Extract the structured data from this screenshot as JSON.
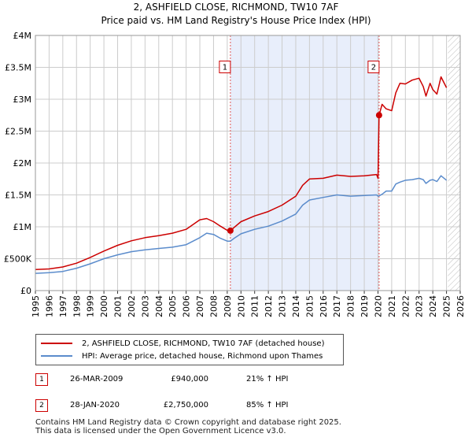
{
  "chart_data": {
    "type": "line",
    "title": "2, ASHFIELD CLOSE, RICHMOND, TW10 7AF",
    "subtitle": "Price paid vs. HM Land Registry's House Price Index (HPI)",
    "xlim": [
      1995,
      2026
    ],
    "ylim": [
      0,
      4000000
    ],
    "y_ticks": [
      {
        "value": 0,
        "label": "£0"
      },
      {
        "value": 500000,
        "label": "£500K"
      },
      {
        "value": 1000000,
        "label": "£1M"
      },
      {
        "value": 1500000,
        "label": "£1.5M"
      },
      {
        "value": 2000000,
        "label": "£2M"
      },
      {
        "value": 2500000,
        "label": "£2.5M"
      },
      {
        "value": 3000000,
        "label": "£3M"
      },
      {
        "value": 3500000,
        "label": "£3.5M"
      },
      {
        "value": 4000000,
        "label": "£4M"
      }
    ],
    "x_ticks": [
      "1995",
      "1996",
      "1997",
      "1998",
      "1999",
      "2000",
      "2001",
      "2002",
      "2003",
      "2004",
      "2005",
      "2006",
      "2007",
      "2008",
      "2009",
      "2010",
      "2011",
      "2012",
      "2013",
      "2014",
      "2015",
      "2016",
      "2017",
      "2018",
      "2019",
      "2020",
      "2021",
      "2022",
      "2023",
      "2024",
      "2025",
      "2026"
    ],
    "shaded_region": {
      "from": 2009.23,
      "to": 2020.08,
      "color": "#e8eefb"
    },
    "future_hatch_from": 2025.1,
    "series": [
      {
        "name": "2, ASHFIELD CLOSE, RICHMOND, TW10 7AF (detached house)",
        "color": "#cc0000",
        "x": [
          1995.0,
          1996.0,
          1997.0,
          1998.0,
          1999.0,
          2000.0,
          2001.0,
          2002.0,
          2003.0,
          2004.0,
          2005.0,
          2006.0,
          2007.0,
          2007.5,
          2008.0,
          2008.5,
          2009.0,
          2009.23,
          2009.5,
          2010.0,
          2011.0,
          2012.0,
          2013.0,
          2014.0,
          2014.5,
          2015.0,
          2016.0,
          2017.0,
          2018.0,
          2019.0,
          2019.9,
          2020.0,
          2020.08,
          2020.3,
          2020.6,
          2021.0,
          2021.3,
          2021.6,
          2022.0,
          2022.5,
          2023.0,
          2023.3,
          2023.5,
          2023.8,
          2024.0,
          2024.3,
          2024.6,
          2025.0
        ],
        "values": [
          330000,
          340000,
          370000,
          430000,
          520000,
          620000,
          710000,
          780000,
          830000,
          860000,
          900000,
          960000,
          1110000,
          1130000,
          1080000,
          1010000,
          945000,
          940000,
          990000,
          1080000,
          1170000,
          1240000,
          1340000,
          1480000,
          1650000,
          1750000,
          1760000,
          1810000,
          1790000,
          1800000,
          1820000,
          1760000,
          2750000,
          2920000,
          2850000,
          2820000,
          3100000,
          3250000,
          3240000,
          3300000,
          3330000,
          3200000,
          3050000,
          3250000,
          3150000,
          3080000,
          3350000,
          3180000
        ]
      },
      {
        "name": "HPI: Average price, detached house, Richmond upon Thames",
        "color": "#5b8ccc",
        "x": [
          1995.0,
          1996.0,
          1997.0,
          1998.0,
          1999.0,
          2000.0,
          2001.0,
          2002.0,
          2003.0,
          2004.0,
          2005.0,
          2006.0,
          2007.0,
          2007.5,
          2008.0,
          2008.5,
          2009.0,
          2009.23,
          2009.5,
          2010.0,
          2011.0,
          2012.0,
          2013.0,
          2014.0,
          2014.5,
          2015.0,
          2016.0,
          2017.0,
          2018.0,
          2019.0,
          2019.9,
          2020.0,
          2020.08,
          2020.3,
          2020.6,
          2021.0,
          2021.3,
          2021.6,
          2022.0,
          2022.5,
          2023.0,
          2023.3,
          2023.5,
          2023.8,
          2024.0,
          2024.3,
          2024.6,
          2025.0
        ],
        "values": [
          270000,
          280000,
          300000,
          350000,
          420000,
          500000,
          560000,
          610000,
          640000,
          660000,
          680000,
          720000,
          830000,
          900000,
          880000,
          820000,
          775000,
          775000,
          820000,
          890000,
          960000,
          1010000,
          1090000,
          1200000,
          1340000,
          1420000,
          1460000,
          1500000,
          1480000,
          1490000,
          1500000,
          1480000,
          1485000,
          1510000,
          1560000,
          1560000,
          1670000,
          1700000,
          1730000,
          1740000,
          1760000,
          1740000,
          1680000,
          1730000,
          1740000,
          1710000,
          1800000,
          1730000
        ]
      }
    ],
    "annotations": [
      {
        "label": "1",
        "x": 2009.23,
        "y": 940000,
        "box_value": 3500000
      },
      {
        "label": "2",
        "x": 2020.08,
        "y": 2750000,
        "box_value": 3500000
      }
    ]
  },
  "legend": {
    "items": [
      {
        "label": "2, ASHFIELD CLOSE, RICHMOND, TW10 7AF (detached house)",
        "color": "#cc0000"
      },
      {
        "label": "HPI: Average price, detached house, Richmond upon Thames",
        "color": "#5b8ccc"
      }
    ]
  },
  "sales": [
    {
      "num": "1",
      "date": "26-MAR-2009",
      "price": "£940,000",
      "hpi": "21% ↑ HPI"
    },
    {
      "num": "2",
      "date": "28-JAN-2020",
      "price": "£2,750,000",
      "hpi": "85% ↑ HPI"
    }
  ],
  "footer": {
    "line1": "Contains HM Land Registry data © Crown copyright and database right 2025.",
    "line2": "This data is licensed under the Open Government Licence v3.0."
  }
}
